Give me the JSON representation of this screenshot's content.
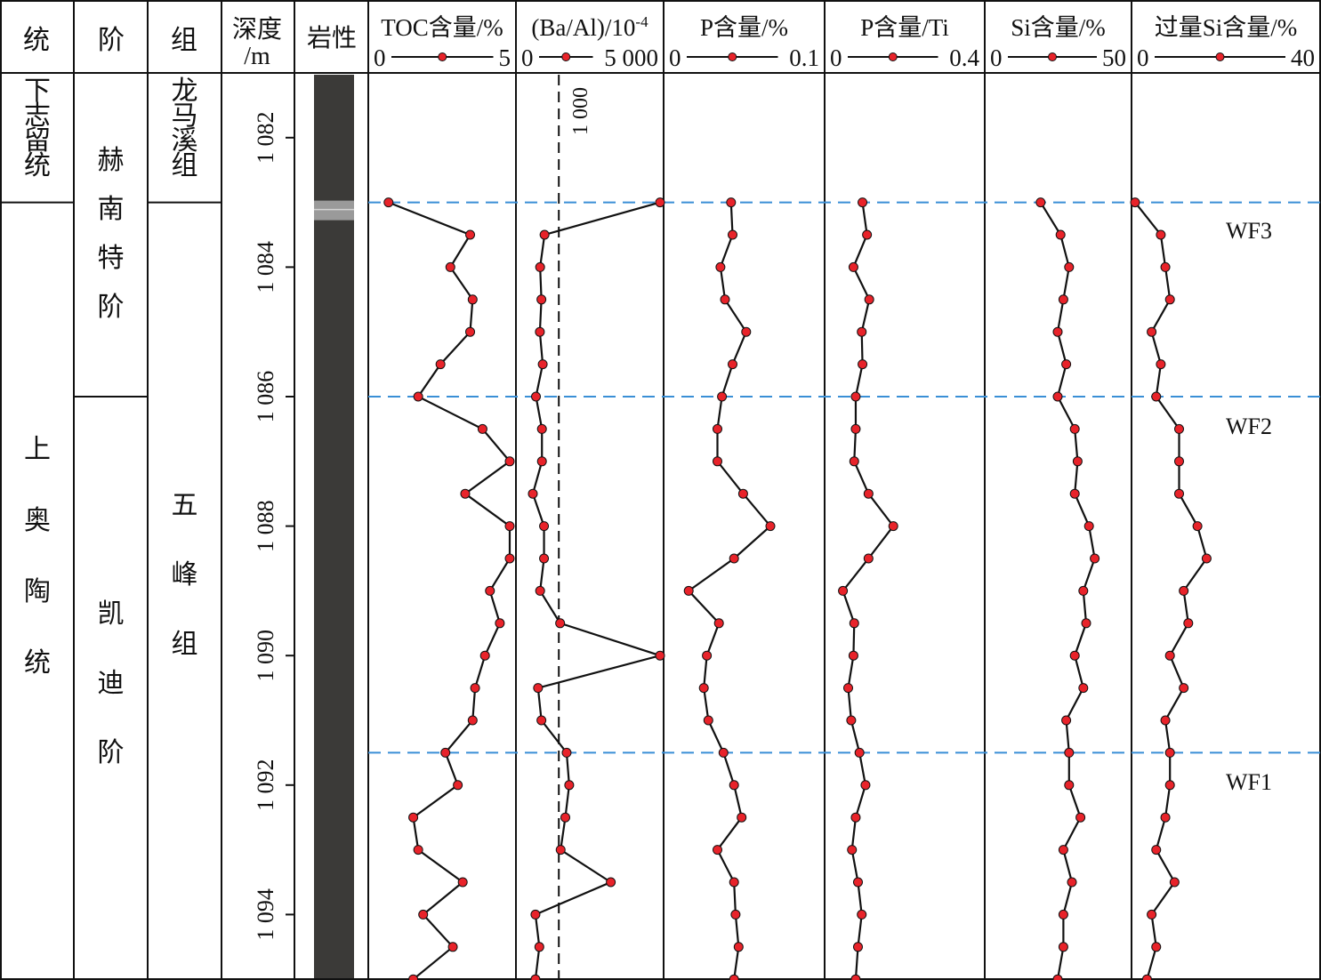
{
  "columns": {
    "series_label": "统",
    "stage_label": "阶",
    "formation_label": "组",
    "depth_label_line1": "深度",
    "depth_label_line2": "/m",
    "lithology_label": "岩性"
  },
  "stratigraphy": {
    "series": [
      {
        "name": "下志留统",
        "top": 1081,
        "bottom": 1083
      },
      {
        "name": "上奥陶统",
        "top": 1083,
        "bottom": 1095
      }
    ],
    "stages": [
      {
        "name": "赫南特阶",
        "top": 1081,
        "bottom": 1086
      },
      {
        "name": "凯迪阶",
        "top": 1086,
        "bottom": 1095
      }
    ],
    "formations": [
      {
        "name": "龙马溪组",
        "top": 1081,
        "bottom": 1083
      },
      {
        "name": "五峰组",
        "top": 1083,
        "bottom": 1095
      }
    ]
  },
  "markers": [
    {
      "label": "WF3",
      "depth": 1083.0
    },
    {
      "label": "WF2",
      "depth": 1086.0
    },
    {
      "label": "WF1",
      "depth": 1091.5
    }
  ],
  "colors": {
    "line": "#111111",
    "point": "#e8232a",
    "marker_line": "#3a8fd6",
    "lithology": "#3b3a38",
    "lithology_band": "#9a9a9a"
  },
  "chart_data": {
    "type": "line",
    "y_axis": {
      "label": "深度/m",
      "range": [
        1081,
        1095
      ],
      "ticks": [
        1082,
        1084,
        1086,
        1088,
        1090,
        1092,
        1094
      ],
      "tick_labels": [
        "1 082",
        "1 084",
        "1 086",
        "1 088",
        "1 090",
        "1 092",
        "1 094"
      ]
    },
    "depths": [
      1083.0,
      1083.5,
      1084.0,
      1084.5,
      1085.0,
      1085.5,
      1086.0,
      1086.5,
      1087.0,
      1087.5,
      1088.0,
      1088.5,
      1089.0,
      1089.5,
      1090.0,
      1090.5,
      1091.0,
      1091.5,
      1092.0,
      1092.5,
      1093.0,
      1093.5,
      1094.0,
      1094.5,
      1095.0
    ],
    "series": [
      {
        "name": "TOC含量/%",
        "axis_min_label": "0",
        "axis_max_label": "5",
        "range": [
          0,
          5
        ],
        "values": [
          0.1,
          3.4,
          2.6,
          3.5,
          3.4,
          2.2,
          1.3,
          3.9,
          6.0,
          3.2,
          5.8,
          6.4,
          4.2,
          4.6,
          4.0,
          3.6,
          3.5,
          2.4,
          2.9,
          1.1,
          1.3,
          3.1,
          1.5,
          2.7,
          1.1
        ],
        "reference_line": null
      },
      {
        "name": "(Ba/Al)/10",
        "name_superscript": "-4",
        "axis_min_label": "0",
        "axis_max_label": "5 000",
        "range": [
          0,
          5000
        ],
        "values": [
          5000,
          450,
          280,
          330,
          270,
          380,
          120,
          350,
          350,
          0,
          430,
          430,
          280,
          1050,
          5000,
          200,
          330,
          1300,
          1400,
          1250,
          1070,
          3000,
          100,
          250,
          100
        ],
        "reference_line": {
          "value": 1000,
          "label": "1 000"
        }
      },
      {
        "name": "P含量/%",
        "axis_min_label": "0",
        "axis_max_label": "0.1",
        "range": [
          0,
          0.1
        ],
        "values": [
          0.044,
          0.045,
          0.037,
          0.04,
          0.054,
          0.045,
          0.038,
          0.035,
          0.035,
          0.052,
          0.07,
          0.046,
          0.016,
          0.036,
          0.028,
          0.026,
          0.029,
          0.039,
          0.046,
          0.051,
          0.035,
          0.046,
          0.047,
          0.049,
          0.046
        ],
        "reference_line": null
      },
      {
        "name": "P含量/Ti",
        "axis_min_label": "0",
        "axis_max_label": "0.4",
        "range": [
          0,
          0.4
        ],
        "values": [
          0.096,
          0.108,
          0.072,
          0.114,
          0.094,
          0.096,
          0.078,
          0.078,
          0.074,
          0.112,
          0.178,
          0.112,
          0.044,
          0.074,
          0.072,
          0.058,
          0.066,
          0.088,
          0.104,
          0.078,
          0.068,
          0.084,
          0.094,
          0.084,
          0.078
        ],
        "reference_line": null
      },
      {
        "name": "Si含量/%",
        "axis_min_label": "0",
        "axis_max_label": "50",
        "range": [
          0,
          50
        ],
        "values": [
          19,
          26,
          29,
          27,
          25,
          28,
          25,
          31,
          32,
          31,
          36,
          38,
          34,
          35,
          31,
          34,
          28,
          29,
          29,
          33,
          27,
          30,
          27,
          27,
          25
        ],
        "reference_line": null
      },
      {
        "name": "过量Si含量/%",
        "axis_min_label": "0",
        "axis_max_label": "40",
        "range": [
          0,
          40
        ],
        "values": [
          -1,
          6,
          7,
          8,
          4,
          6,
          5,
          10,
          10,
          10,
          14,
          16,
          11,
          12,
          8,
          11,
          7,
          8,
          8,
          7,
          5,
          9,
          4,
          5,
          3
        ],
        "reference_line": null
      }
    ]
  }
}
